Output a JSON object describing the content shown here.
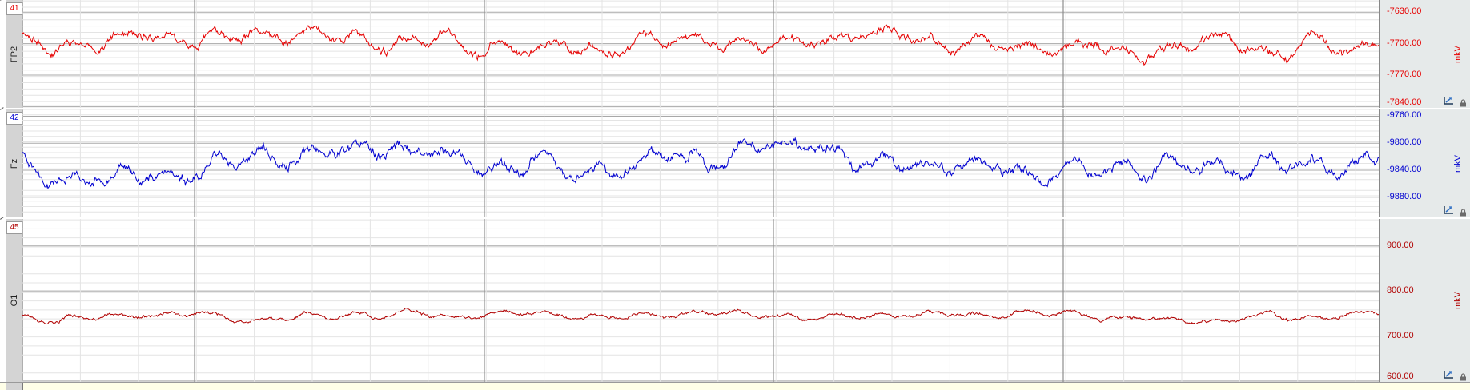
{
  "channels": [
    {
      "number": "41",
      "name": "FP2",
      "unit": "mkV",
      "color": "#e60000",
      "y_range": [
        -7843,
        -7603
      ],
      "y_ticks": [
        {
          "value": -7630,
          "label": "-7630.00"
        },
        {
          "value": -7700,
          "label": "-7700.00"
        },
        {
          "value": -7770,
          "label": "-7770.00"
        },
        {
          "value": -7840,
          "label": "-7840.00"
        }
      ],
      "baseline": -7700,
      "amplitude": 22,
      "seed": 11
    },
    {
      "number": "42",
      "name": "Fz",
      "unit": "mkV",
      "color": "#0000d0",
      "y_range": [
        -9910,
        -9750
      ],
      "y_ticks": [
        {
          "value": -9760,
          "label": "-9760.00"
        },
        {
          "value": -9800,
          "label": "-9800.00"
        },
        {
          "value": -9840,
          "label": "-9840.00"
        },
        {
          "value": -9880,
          "label": "-9880.00"
        }
      ],
      "baseline": -9828,
      "amplitude": 18,
      "seed": 23
    },
    {
      "number": "45",
      "name": "O1",
      "unit": "mkV",
      "color": "#b00000",
      "y_range": [
        598,
        960
      ],
      "y_ticks": [
        {
          "value": 900,
          "label": "900.00"
        },
        {
          "value": 800,
          "label": "800.00"
        },
        {
          "value": 700,
          "label": "700.00"
        },
        {
          "value": 600,
          "label": "600.00"
        }
      ],
      "baseline": 745,
      "amplitude": 9,
      "seed": 37
    }
  ],
  "chart_data": {
    "type": "line",
    "title": "",
    "xlabel": "",
    "ylabel": "mkV",
    "grid": true,
    "major_time_divisions": 4,
    "series": [
      {
        "name": "FP2",
        "channel": "41",
        "ylim": [
          -7843,
          -7603
        ]
      },
      {
        "name": "Fz",
        "channel": "42",
        "ylim": [
          -9910,
          -9750
        ]
      },
      {
        "name": "O1",
        "channel": "45",
        "ylim": [
          598,
          960
        ]
      }
    ]
  }
}
